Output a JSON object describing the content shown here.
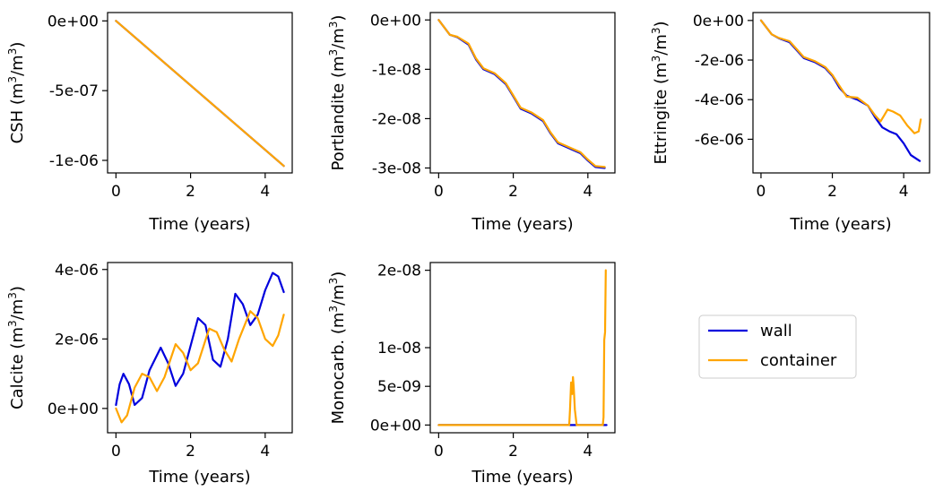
{
  "colors": {
    "wall": "#0000dd",
    "container": "#ffa500",
    "axis": "#000000"
  },
  "legend": {
    "placement": "right-middle",
    "entries": [
      {
        "name": "wall",
        "color": "#0000dd"
      },
      {
        "name": "container",
        "color": "#ffa500"
      }
    ]
  },
  "chart_data": [
    {
      "id": "csh",
      "type": "line",
      "ylabel_base": "CSH",
      "unit": {
        "m": "m",
        "sup": "3"
      },
      "xlabel": "Time (years)",
      "xlim": [
        -0.225,
        4.725
      ],
      "ylim": [
        -1.09e-06,
        6e-08
      ],
      "xticks": [
        0,
        2,
        4
      ],
      "xtick_labels": [
        "0",
        "2",
        "4"
      ],
      "yticks": [
        0,
        -5e-07,
        -1e-06
      ],
      "ytick_labels": [
        "0e+00",
        "-5e-07",
        "-1e-06"
      ],
      "series": [
        {
          "name": "wall",
          "color": "#0000dd",
          "points": [
            [
              0,
              0
            ],
            [
              4.5,
              -1.04e-06
            ]
          ]
        },
        {
          "name": "container",
          "color": "#ffa500",
          "points": [
            [
              0,
              0
            ],
            [
              4.5,
              -1.04e-06
            ]
          ]
        }
      ]
    },
    {
      "id": "portlandite",
      "type": "line",
      "ylabel_base": "Portlandite",
      "unit": {
        "m": "m",
        "sup": "3"
      },
      "xlabel": "Time (years)",
      "xlim": [
        -0.225,
        4.725
      ],
      "ylim": [
        -3.1e-08,
        1.5e-09
      ],
      "xticks": [
        0,
        2,
        4
      ],
      "xtick_labels": [
        "0",
        "2",
        "4"
      ],
      "yticks": [
        0,
        -1e-08,
        -2e-08,
        -3e-08
      ],
      "ytick_labels": [
        "0e+00",
        "-1e-08",
        "-2e-08",
        "-3e-08"
      ],
      "series": [
        {
          "name": "wall",
          "color": "#0000dd",
          "points": [
            [
              0,
              0
            ],
            [
              0.3,
              -3e-09
            ],
            [
              0.5,
              -3.5e-09
            ],
            [
              0.8,
              -5e-09
            ],
            [
              1,
              -8e-09
            ],
            [
              1.2,
              -1e-08
            ],
            [
              1.5,
              -1.1e-08
            ],
            [
              1.8,
              -1.3e-08
            ],
            [
              2,
              -1.55e-08
            ],
            [
              2.2,
              -1.8e-08
            ],
            [
              2.5,
              -1.9e-08
            ],
            [
              2.8,
              -2.05e-08
            ],
            [
              3,
              -2.3e-08
            ],
            [
              3.2,
              -2.5e-08
            ],
            [
              3.5,
              -2.6e-08
            ],
            [
              3.8,
              -2.7e-08
            ],
            [
              4,
              -2.85e-08
            ],
            [
              4.2,
              -2.98e-08
            ],
            [
              4.45,
              -3e-08
            ]
          ]
        },
        {
          "name": "container",
          "color": "#ffa500",
          "points": [
            [
              0,
              0
            ],
            [
              0.3,
              -3e-09
            ],
            [
              0.5,
              -3.4e-09
            ],
            [
              0.8,
              -4.8e-09
            ],
            [
              1,
              -7.8e-09
            ],
            [
              1.2,
              -9.8e-09
            ],
            [
              1.5,
              -1.08e-08
            ],
            [
              1.8,
              -1.28e-08
            ],
            [
              2,
              -1.53e-08
            ],
            [
              2.2,
              -1.78e-08
            ],
            [
              2.5,
              -1.88e-08
            ],
            [
              2.8,
              -2.03e-08
            ],
            [
              3,
              -2.28e-08
            ],
            [
              3.2,
              -2.48e-08
            ],
            [
              3.5,
              -2.58e-08
            ],
            [
              3.8,
              -2.68e-08
            ],
            [
              4,
              -2.83e-08
            ],
            [
              4.2,
              -2.96e-08
            ],
            [
              4.45,
              -2.98e-08
            ]
          ]
        }
      ]
    },
    {
      "id": "ettringite",
      "type": "line",
      "ylabel_base": "Ettringite",
      "unit": {
        "m": "m",
        "sup": "3"
      },
      "xlabel": "Time (years)",
      "xlim": [
        -0.225,
        4.725
      ],
      "ylim": [
        -7.7e-06,
        4e-07
      ],
      "xticks": [
        0,
        2,
        4
      ],
      "xtick_labels": [
        "0",
        "2",
        "4"
      ],
      "yticks": [
        0,
        -2e-06,
        -4e-06,
        -6e-06
      ],
      "ytick_labels": [
        "0e+00",
        "-2e-06",
        "-4e-06",
        "-6e-06"
      ],
      "series": [
        {
          "name": "wall",
          "color": "#0000dd",
          "points": [
            [
              0,
              0
            ],
            [
              0.3,
              -7e-07
            ],
            [
              0.5,
              -9e-07
            ],
            [
              0.8,
              -1.1e-06
            ],
            [
              1,
              -1.5e-06
            ],
            [
              1.2,
              -1.9e-06
            ],
            [
              1.5,
              -2.1e-06
            ],
            [
              1.8,
              -2.4e-06
            ],
            [
              2,
              -2.8e-06
            ],
            [
              2.2,
              -3.4e-06
            ],
            [
              2.4,
              -3.8e-06
            ],
            [
              2.7,
              -4e-06
            ],
            [
              3,
              -4.3e-06
            ],
            [
              3.2,
              -4.9e-06
            ],
            [
              3.4,
              -5.4e-06
            ],
            [
              3.6,
              -5.6e-06
            ],
            [
              3.8,
              -5.75e-06
            ],
            [
              4,
              -6.2e-06
            ],
            [
              4.2,
              -6.8e-06
            ],
            [
              4.45,
              -7.1e-06
            ]
          ]
        },
        {
          "name": "container",
          "color": "#ffa500",
          "points": [
            [
              0,
              0
            ],
            [
              0.3,
              -7e-07
            ],
            [
              0.5,
              -8.8e-07
            ],
            [
              0.8,
              -1.05e-06
            ],
            [
              1,
              -1.45e-06
            ],
            [
              1.2,
              -1.85e-06
            ],
            [
              1.5,
              -2.05e-06
            ],
            [
              1.8,
              -2.35e-06
            ],
            [
              2,
              -2.75e-06
            ],
            [
              2.2,
              -3.3e-06
            ],
            [
              2.4,
              -3.85e-06
            ],
            [
              2.7,
              -3.9e-06
            ],
            [
              3,
              -4.3e-06
            ],
            [
              3.2,
              -4.8e-06
            ],
            [
              3.35,
              -5.1e-06
            ],
            [
              3.45,
              -4.8e-06
            ],
            [
              3.55,
              -4.5e-06
            ],
            [
              3.7,
              -4.6e-06
            ],
            [
              3.9,
              -4.8e-06
            ],
            [
              4.1,
              -5.3e-06
            ],
            [
              4.3,
              -5.7e-06
            ],
            [
              4.42,
              -5.6e-06
            ],
            [
              4.48,
              -5e-06
            ]
          ]
        }
      ]
    },
    {
      "id": "calcite",
      "type": "line",
      "ylabel_base": "Calcite",
      "unit": {
        "m": "m",
        "sup": "3"
      },
      "xlabel": "Time (years)",
      "xlim": [
        -0.225,
        4.725
      ],
      "ylim": [
        -7e-07,
        4.2e-06
      ],
      "xticks": [
        0,
        2,
        4
      ],
      "xtick_labels": [
        "0",
        "2",
        "4"
      ],
      "yticks": [
        0,
        2e-06,
        4e-06
      ],
      "ytick_labels": [
        "0e+00",
        "2e-06",
        "4e-06"
      ],
      "series": [
        {
          "name": "wall",
          "color": "#0000dd",
          "points": [
            [
              0,
              1e-07
            ],
            [
              0.1,
              7e-07
            ],
            [
              0.2,
              1e-06
            ],
            [
              0.35,
              7e-07
            ],
            [
              0.5,
              1e-07
            ],
            [
              0.7,
              3e-07
            ],
            [
              0.9,
              1.1e-06
            ],
            [
              1.2,
              1.75e-06
            ],
            [
              1.4,
              1.3e-06
            ],
            [
              1.6,
              6.5e-07
            ],
            [
              1.8,
              1e-06
            ],
            [
              2.2,
              2.6e-06
            ],
            [
              2.4,
              2.4e-06
            ],
            [
              2.6,
              1.4e-06
            ],
            [
              2.8,
              1.2e-06
            ],
            [
              3.0,
              2e-06
            ],
            [
              3.2,
              3.3e-06
            ],
            [
              3.4,
              3e-06
            ],
            [
              3.6,
              2.4e-06
            ],
            [
              3.8,
              2.7e-06
            ],
            [
              4.0,
              3.4e-06
            ],
            [
              4.2,
              3.9e-06
            ],
            [
              4.35,
              3.8e-06
            ],
            [
              4.5,
              3.35e-06
            ]
          ]
        },
        {
          "name": "container",
          "color": "#ffa500",
          "points": [
            [
              0,
              0
            ],
            [
              0.15,
              -4e-07
            ],
            [
              0.3,
              -2e-07
            ],
            [
              0.5,
              6e-07
            ],
            [
              0.7,
              1e-06
            ],
            [
              0.9,
              9e-07
            ],
            [
              1.1,
              5e-07
            ],
            [
              1.3,
              9e-07
            ],
            [
              1.6,
              1.85e-06
            ],
            [
              1.8,
              1.6e-06
            ],
            [
              2.0,
              1.1e-06
            ],
            [
              2.2,
              1.3e-06
            ],
            [
              2.5,
              2.3e-06
            ],
            [
              2.7,
              2.2e-06
            ],
            [
              2.9,
              1.7e-06
            ],
            [
              3.1,
              1.35e-06
            ],
            [
              3.3,
              2e-06
            ],
            [
              3.6,
              2.8e-06
            ],
            [
              3.8,
              2.6e-06
            ],
            [
              4.0,
              2e-06
            ],
            [
              4.2,
              1.8e-06
            ],
            [
              4.35,
              2.1e-06
            ],
            [
              4.5,
              2.7e-06
            ]
          ]
        }
      ]
    },
    {
      "id": "monocarb",
      "type": "line",
      "ylabel_base": "Monocarb.",
      "unit": {
        "m": "m",
        "sup": "3"
      },
      "xlabel": "Time (years)",
      "xlim": [
        -0.225,
        4.725
      ],
      "ylim": [
        -1e-09,
        2.1e-08
      ],
      "xticks": [
        0,
        2,
        4
      ],
      "xtick_labels": [
        "0",
        "2",
        "4"
      ],
      "yticks": [
        0,
        5e-09,
        1e-08,
        2e-08
      ],
      "ytick_labels": [
        "0e+00",
        "5e-09",
        "1e-08",
        "2e-08"
      ],
      "series": [
        {
          "name": "wall",
          "color": "#0000dd",
          "points": [
            [
              0,
              0
            ],
            [
              4.5,
              0
            ]
          ]
        },
        {
          "name": "container",
          "color": "#ffa500",
          "points": [
            [
              0,
              0
            ],
            [
              3.5,
              0
            ],
            [
              3.52,
              2e-09
            ],
            [
              3.55,
              5.5e-09
            ],
            [
              3.58,
              4e-09
            ],
            [
              3.6,
              6.2e-09
            ],
            [
              3.62,
              5e-09
            ],
            [
              3.65,
              2e-09
            ],
            [
              3.7,
              0
            ],
            [
              4.4,
              0
            ],
            [
              4.42,
              1e-09
            ],
            [
              4.44,
              1.1e-08
            ],
            [
              4.46,
              1.2e-08
            ],
            [
              4.48,
              2e-08
            ]
          ]
        }
      ]
    }
  ]
}
